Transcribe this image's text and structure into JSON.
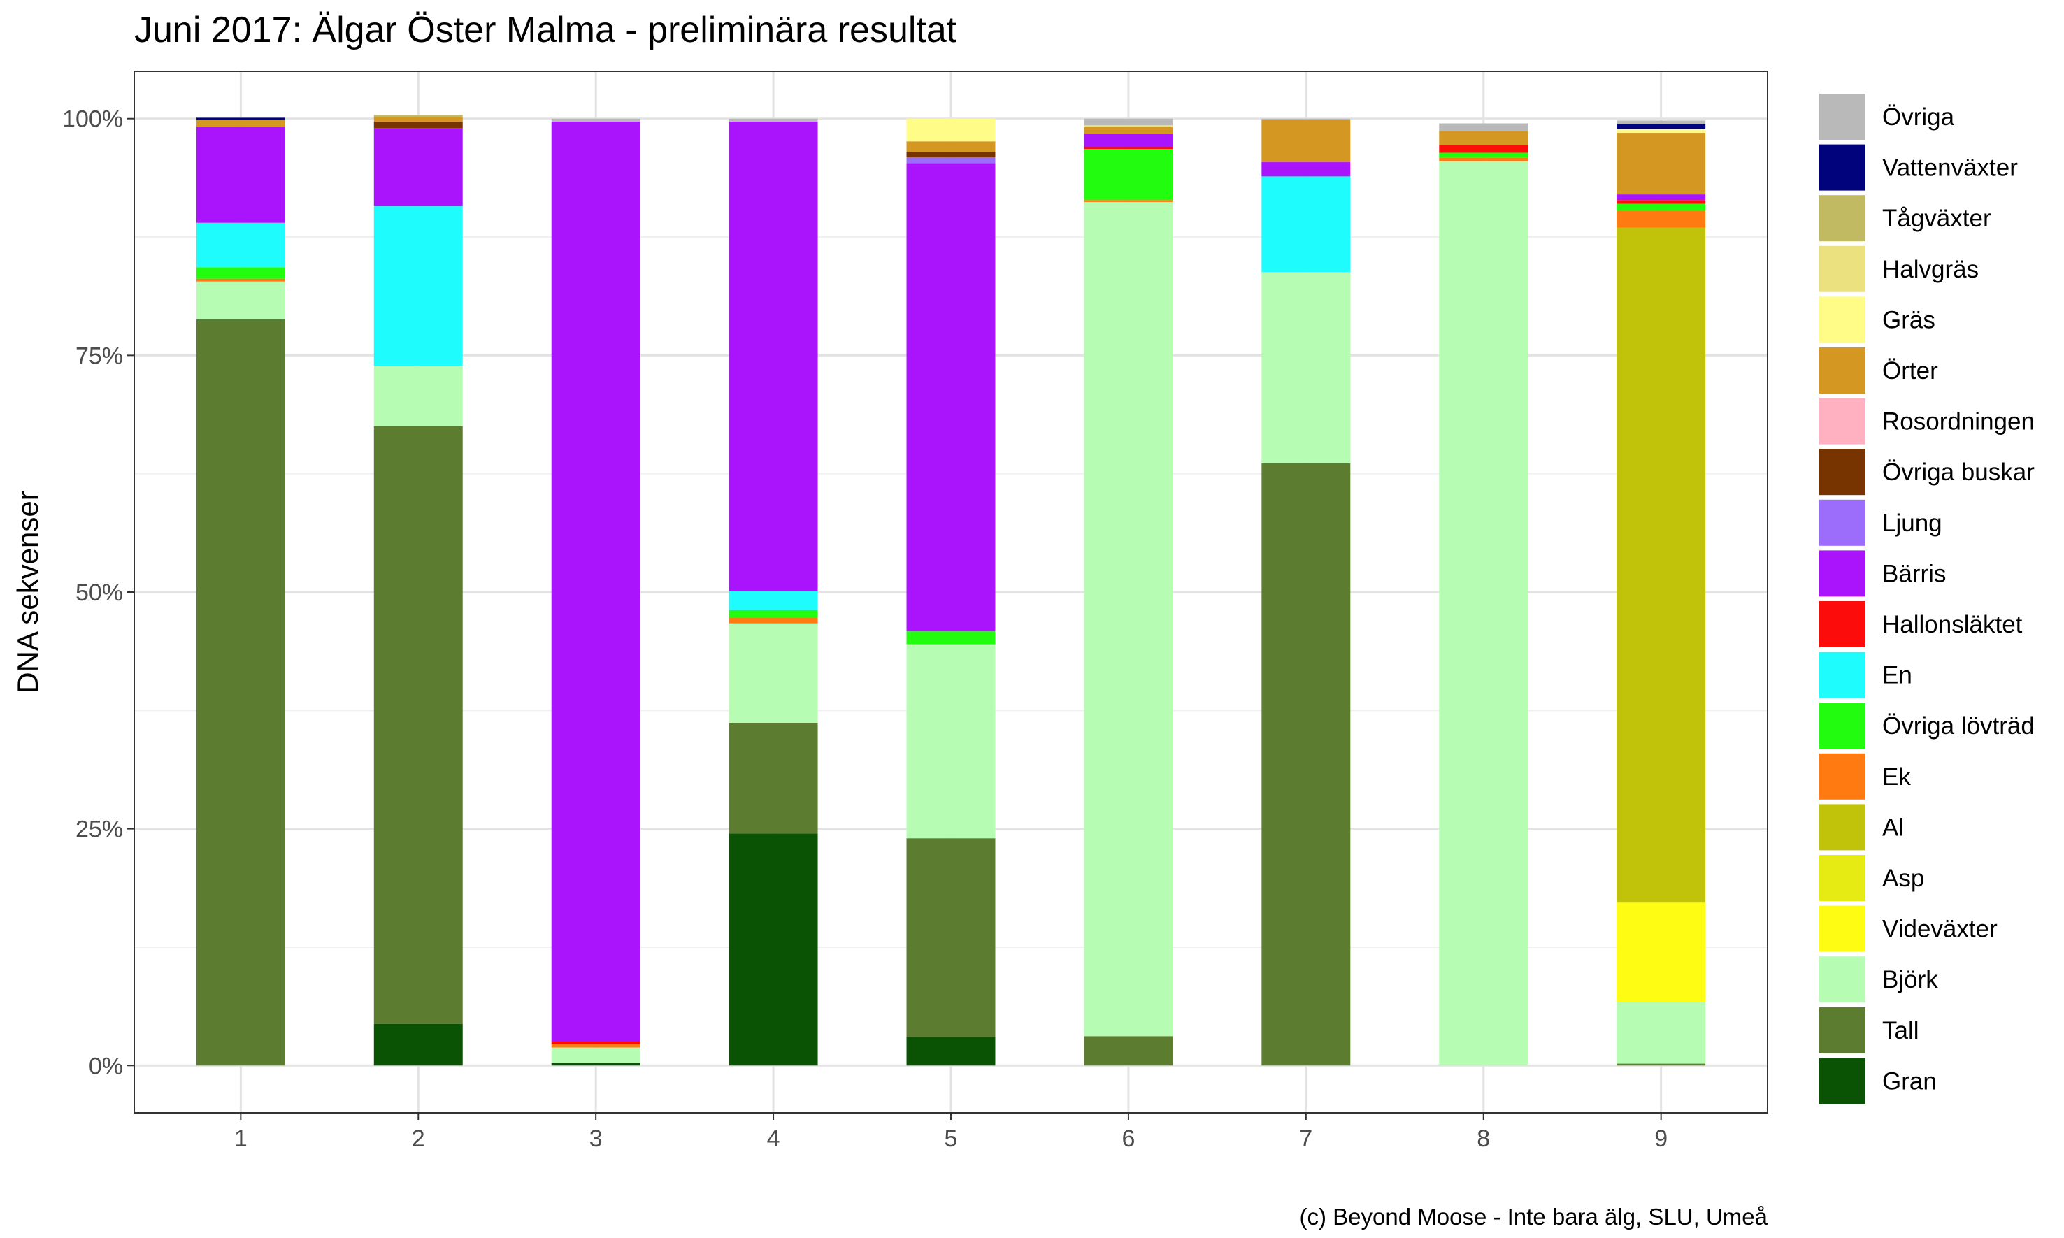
{
  "chart_data": {
    "type": "bar",
    "stacked": true,
    "title": "Juni 2017: Älgar Öster Malma - preliminära resultat",
    "xlabel": "",
    "ylabel": "DNA sekvenser",
    "caption": "(c) Beyond Moose - Inte bara älg, SLU, Umeå",
    "categories": [
      "1",
      "2",
      "3",
      "4",
      "5",
      "6",
      "7",
      "8",
      "9"
    ],
    "y_ticks": [
      0,
      25,
      50,
      75,
      100
    ],
    "y_tick_labels": [
      "0%",
      "25%",
      "50%",
      "75%",
      "100%"
    ],
    "ylim": [
      -5,
      105
    ],
    "grid": true,
    "legend_position": "right",
    "series": [
      {
        "name": "Gran",
        "color": "#0b5304",
        "values": [
          0,
          4.4,
          0.3,
          24.5,
          3.0,
          0,
          0,
          0,
          0
        ]
      },
      {
        "name": "Tall",
        "color": "#5c7c30",
        "values": [
          78.8,
          63.1,
          0,
          11.7,
          21.0,
          3.1,
          63.6,
          0,
          0.2
        ]
      },
      {
        "name": "Björk",
        "color": "#b6fcb2",
        "values": [
          4.0,
          6.4,
          1.6,
          10.5,
          20.5,
          88.1,
          20.2,
          95.5,
          6.5
        ]
      },
      {
        "name": "Videväxter",
        "color": "#fffc14",
        "values": [
          0,
          0,
          0,
          0,
          0,
          0,
          0,
          0,
          10.5
        ]
      },
      {
        "name": "Asp",
        "color": "#e6ec13",
        "values": [
          0,
          0,
          0,
          0,
          0,
          0,
          0,
          0,
          0
        ]
      },
      {
        "name": "Al",
        "color": "#c1c30a",
        "values": [
          0,
          0,
          0,
          0,
          0,
          0,
          0,
          0,
          71.3
        ]
      },
      {
        "name": "Ek",
        "color": "#ff7b11",
        "values": [
          0.3,
          0,
          0.4,
          0.6,
          0,
          0.2,
          0,
          0.4,
          1.8
        ]
      },
      {
        "name": "Övriga lövträd",
        "color": "#22fc0f",
        "values": [
          1.2,
          0,
          0,
          0.8,
          1.4,
          5.4,
          0,
          0.5,
          0.7
        ]
      },
      {
        "name": "En",
        "color": "#1efcfe",
        "values": [
          4.7,
          16.9,
          0,
          2.0,
          0,
          0,
          10.1,
          0,
          0
        ]
      },
      {
        "name": "Hallonsläktet",
        "color": "#fc0d0c",
        "values": [
          0,
          0,
          0.3,
          0,
          0,
          0.2,
          0,
          0.8,
          0.4
        ]
      },
      {
        "name": "Bärris",
        "color": "#a914fd",
        "values": [
          10.1,
          8.2,
          97.1,
          49.6,
          49.4,
          1.4,
          1.5,
          0,
          0.6
        ]
      },
      {
        "name": "Ljung",
        "color": "#9c6dfb",
        "values": [
          0,
          0,
          0,
          0,
          0.6,
          0,
          0,
          0,
          0
        ]
      },
      {
        "name": "Övriga buskar",
        "color": "#773300",
        "values": [
          0,
          0.7,
          0,
          0,
          0.6,
          0,
          0,
          0,
          0
        ]
      },
      {
        "name": "Rosordningen",
        "color": "#ffb1c1",
        "values": [
          0,
          0,
          0,
          0,
          0,
          0,
          0,
          0,
          0
        ]
      },
      {
        "name": "Örter",
        "color": "#d39722",
        "values": [
          0.8,
          0.5,
          0,
          0,
          1.1,
          0.7,
          4.5,
          1.5,
          6.5
        ]
      },
      {
        "name": "Gräs",
        "color": "#fffc88",
        "values": [
          0,
          0,
          0,
          0,
          2.4,
          0,
          0,
          0,
          0.4
        ]
      },
      {
        "name": "Halvgräs",
        "color": "#ebe27f",
        "values": [
          0,
          0,
          0,
          0,
          0,
          0.2,
          0,
          0,
          0
        ]
      },
      {
        "name": "Tågväxter",
        "color": "#c2ba63",
        "values": [
          0,
          0.2,
          0,
          0,
          0,
          0,
          0,
          0,
          0
        ]
      },
      {
        "name": "Vattenväxter",
        "color": "#01037c",
        "values": [
          0.2,
          0,
          0,
          0,
          0,
          0,
          0,
          0,
          0.5
        ]
      },
      {
        "name": "Övriga",
        "color": "#b9b9b9",
        "values": [
          0,
          0,
          0.3,
          0.3,
          0,
          0.7,
          0.1,
          0.8,
          0.4
        ]
      }
    ]
  }
}
